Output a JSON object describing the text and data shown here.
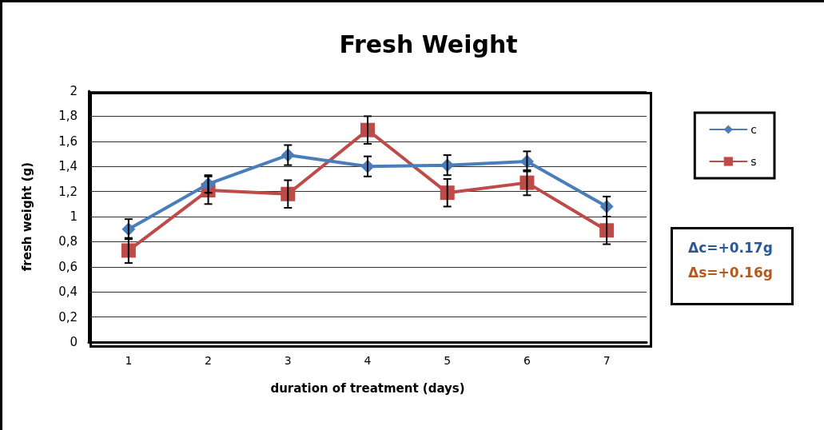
{
  "chart_data": {
    "type": "line",
    "title": "Fresh Weight",
    "xlabel": "duration of treatment (days)",
    "ylabel": "fresh weight (g)",
    "categories": [
      "1",
      "2",
      "3",
      "4",
      "5",
      "6",
      "7"
    ],
    "series": [
      {
        "name": "c",
        "color": "#4a7ebb",
        "marker": "diamond",
        "values": [
          0.9,
          1.26,
          1.49,
          1.4,
          1.41,
          1.44,
          1.08
        ],
        "errors": [
          0.08,
          0.07,
          0.08,
          0.08,
          0.08,
          0.08,
          0.08
        ]
      },
      {
        "name": "s",
        "color": "#be4b48",
        "marker": "square",
        "values": [
          0.73,
          1.21,
          1.18,
          1.69,
          1.19,
          1.27,
          0.89
        ],
        "errors": [
          0.1,
          0.11,
          0.11,
          0.11,
          0.11,
          0.1,
          0.11
        ]
      }
    ],
    "ylim": [
      0,
      2
    ],
    "yticks": [
      {
        "value": 0,
        "label": "0"
      },
      {
        "value": 0.2,
        "label": "0,2"
      },
      {
        "value": 0.4,
        "label": "0,4"
      },
      {
        "value": 0.6,
        "label": "0,6"
      },
      {
        "value": 0.8,
        "label": "0,8"
      },
      {
        "value": 1,
        "label": "1"
      },
      {
        "value": 1.2,
        "label": "1,2"
      },
      {
        "value": 1.4,
        "label": "1,4"
      },
      {
        "value": 1.6,
        "label": "1,6"
      },
      {
        "value": 1.8,
        "label": "1,8"
      },
      {
        "value": 2,
        "label": "2"
      }
    ],
    "grid": "y",
    "legend": "right",
    "line_style": "solid",
    "annotations": [
      "Δc=+0.17g",
      "Δs=+0.16g"
    ]
  }
}
